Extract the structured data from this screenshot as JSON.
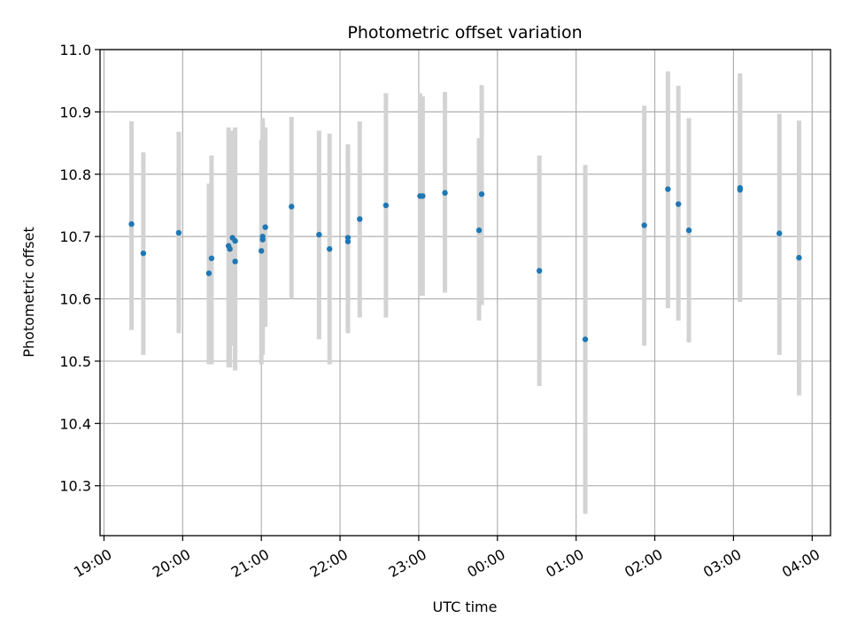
{
  "chart_data": {
    "type": "scatter",
    "title": "Photometric offset variation",
    "xlabel": "UTC time",
    "ylabel": "Photometric offset",
    "xlim": [
      "18:57",
      "04:14"
    ],
    "ylim": [
      10.22,
      11.0
    ],
    "grid": true,
    "x_ticks": [
      "19:00",
      "20:00",
      "21:00",
      "22:00",
      "23:00",
      "00:00",
      "01:00",
      "02:00",
      "03:00",
      "04:00"
    ],
    "y_ticks": [
      10.3,
      10.4,
      10.5,
      10.6,
      10.7,
      10.8,
      10.9,
      11.0
    ],
    "y_tick_labels": [
      "10.3",
      "10.4",
      "10.5",
      "10.6",
      "10.7",
      "10.8",
      "10.9",
      "11.0"
    ],
    "colors": {
      "points": "#1f77b4",
      "error_bars": "#d3d3d3",
      "grid": "#b0b0b0"
    },
    "series": [
      {
        "x": [
          "19:21",
          "19:30",
          "19:57",
          "20:20",
          "20:22",
          "20:35",
          "20:36",
          "20:38",
          "20:40",
          "20:40",
          "21:00",
          "21:01",
          "21:01",
          "21:03",
          "21:23",
          "21:44",
          "21:52",
          "22:06",
          "22:06",
          "22:15",
          "22:35",
          "23:01",
          "23:03",
          "23:20",
          "23:46",
          "23:48",
          "00:32",
          "01:07",
          "01:52",
          "02:10",
          "02:18",
          "02:26",
          "03:05",
          "03:05",
          "03:35",
          "03:50"
        ],
        "y": [
          10.72,
          10.673,
          10.706,
          10.641,
          10.665,
          10.685,
          10.68,
          10.698,
          10.693,
          10.66,
          10.677,
          10.695,
          10.7,
          10.715,
          10.748,
          10.703,
          10.68,
          10.692,
          10.698,
          10.728,
          10.75,
          10.765,
          10.765,
          10.77,
          10.71,
          10.768,
          10.645,
          10.535,
          10.718,
          10.776,
          10.752,
          10.71,
          10.778,
          10.775,
          10.705,
          10.666
        ],
        "y_low": [
          10.55,
          10.51,
          10.545,
          10.495,
          10.495,
          10.49,
          10.49,
          10.525,
          10.485,
          10.485,
          10.495,
          10.51,
          10.52,
          10.555,
          10.6,
          10.535,
          10.495,
          10.545,
          10.545,
          10.57,
          10.57,
          10.605,
          10.605,
          10.61,
          10.565,
          10.59,
          10.46,
          10.255,
          10.525,
          10.585,
          10.565,
          10.53,
          10.595,
          10.595,
          10.51,
          10.445
        ],
        "y_high": [
          10.885,
          10.835,
          10.868,
          10.785,
          10.83,
          10.875,
          10.86,
          10.87,
          10.875,
          10.875,
          10.855,
          10.89,
          10.885,
          10.875,
          10.892,
          10.87,
          10.865,
          10.848,
          10.848,
          10.885,
          10.93,
          10.93,
          10.925,
          10.932,
          10.858,
          10.943,
          10.83,
          10.815,
          10.91,
          10.965,
          10.942,
          10.89,
          10.962,
          10.96,
          10.897,
          10.886
        ]
      }
    ]
  }
}
